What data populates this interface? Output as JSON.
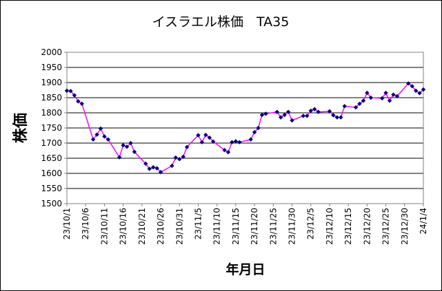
{
  "chart_data": {
    "type": "line",
    "title": "イスラエル株価　TA35",
    "xlabel": "年月日",
    "ylabel": "株価",
    "ylim": [
      1500,
      2000
    ],
    "yticks": [
      "2000",
      "1950",
      "1900",
      "1850",
      "1800",
      "1750",
      "1700",
      "1650",
      "1600",
      "1550",
      "1500"
    ],
    "xlim": [
      "2023-10-01",
      "2024-01-04"
    ],
    "xticks": [
      "23/10/1",
      "23/10/6",
      "23/10/11",
      "23/10/16",
      "23/10/21",
      "23/10/26",
      "23/10/31",
      "23/11/5",
      "23/11/10",
      "23/11/15",
      "23/11/20",
      "23/11/25",
      "23/11/30",
      "23/12/5",
      "23/12/10",
      "23/12/15",
      "23/12/20",
      "23/12/25",
      "23/12/30",
      "24/1/4"
    ],
    "grid": "horizontal",
    "legend": "none",
    "series": [
      {
        "line_color": "#ff00ff",
        "marker_color": "#000080",
        "points": [
          [
            "2023-10-01",
            1873
          ],
          [
            "2023-10-02",
            1872
          ],
          [
            "2023-10-03",
            1858
          ],
          [
            "2023-10-04",
            1838
          ],
          [
            "2023-10-05",
            1830
          ],
          [
            "2023-10-08",
            1712
          ],
          [
            "2023-10-09",
            1728
          ],
          [
            "2023-10-10",
            1748
          ],
          [
            "2023-10-11",
            1722
          ],
          [
            "2023-10-12",
            1712
          ],
          [
            "2023-10-15",
            1653
          ],
          [
            "2023-10-16",
            1693
          ],
          [
            "2023-10-17",
            1688
          ],
          [
            "2023-10-18",
            1700
          ],
          [
            "2023-10-19",
            1671
          ],
          [
            "2023-10-22",
            1632
          ],
          [
            "2023-10-23",
            1615
          ],
          [
            "2023-10-24",
            1620
          ],
          [
            "2023-10-25",
            1617
          ],
          [
            "2023-10-26",
            1604
          ],
          [
            "2023-10-29",
            1625
          ],
          [
            "2023-10-30",
            1652
          ],
          [
            "2023-10-31",
            1647
          ],
          [
            "2023-11-01",
            1655
          ],
          [
            "2023-11-02",
            1687
          ],
          [
            "2023-11-05",
            1726
          ],
          [
            "2023-11-06",
            1703
          ],
          [
            "2023-11-07",
            1727
          ],
          [
            "2023-11-08",
            1718
          ],
          [
            "2023-11-09",
            1705
          ],
          [
            "2023-11-12",
            1677
          ],
          [
            "2023-11-13",
            1670
          ],
          [
            "2023-11-14",
            1703
          ],
          [
            "2023-11-15",
            1706
          ],
          [
            "2023-11-16",
            1703
          ],
          [
            "2023-11-19",
            1712
          ],
          [
            "2023-11-20",
            1736
          ],
          [
            "2023-11-21",
            1750
          ],
          [
            "2023-11-22",
            1793
          ],
          [
            "2023-11-23",
            1797
          ],
          [
            "2023-11-26",
            1803
          ],
          [
            "2023-11-27",
            1785
          ],
          [
            "2023-11-28",
            1793
          ],
          [
            "2023-11-29",
            1803
          ],
          [
            "2023-11-30",
            1775
          ],
          [
            "2023-12-03",
            1790
          ],
          [
            "2023-12-04",
            1790
          ],
          [
            "2023-12-05",
            1807
          ],
          [
            "2023-12-06",
            1812
          ],
          [
            "2023-12-07",
            1803
          ],
          [
            "2023-12-10",
            1805
          ],
          [
            "2023-12-11",
            1792
          ],
          [
            "2023-12-12",
            1785
          ],
          [
            "2023-12-13",
            1785
          ],
          [
            "2023-12-14",
            1822
          ],
          [
            "2023-12-17",
            1818
          ],
          [
            "2023-12-18",
            1830
          ],
          [
            "2023-12-19",
            1840
          ],
          [
            "2023-12-20",
            1866
          ],
          [
            "2023-12-21",
            1850
          ],
          [
            "2023-12-24",
            1848
          ],
          [
            "2023-12-25",
            1866
          ],
          [
            "2023-12-26",
            1840
          ],
          [
            "2023-12-27",
            1860
          ],
          [
            "2023-12-28",
            1855
          ],
          [
            "2023-12-31",
            1897
          ],
          [
            "2024-01-01",
            1888
          ],
          [
            "2024-01-02",
            1873
          ],
          [
            "2024-01-03",
            1865
          ],
          [
            "2024-01-04",
            1877
          ]
        ]
      }
    ]
  }
}
